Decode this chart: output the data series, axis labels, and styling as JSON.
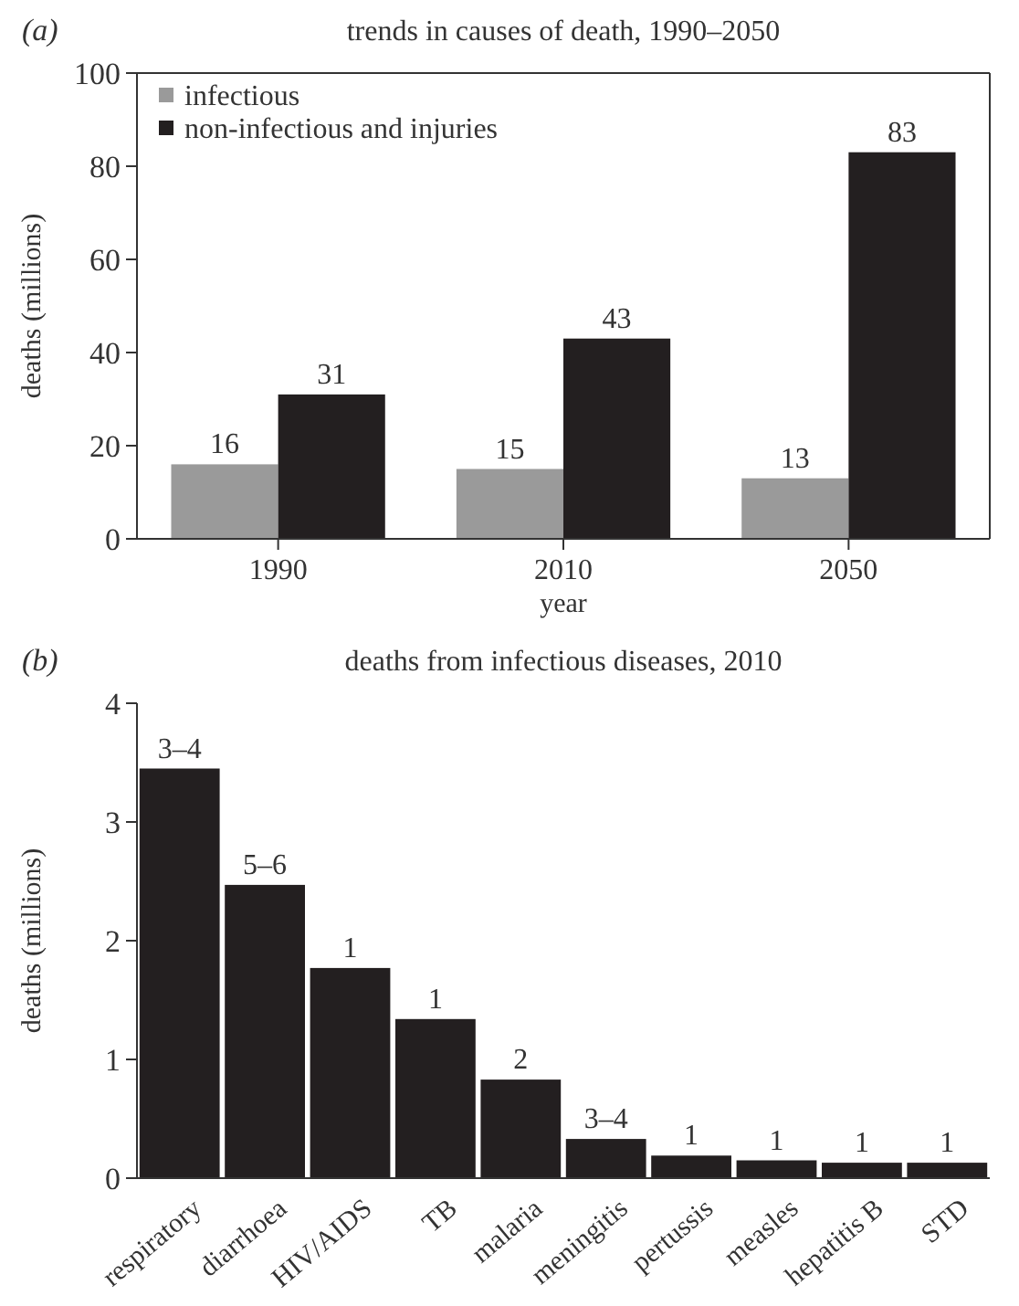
{
  "chart_data": [
    {
      "type": "bar",
      "title": "trends in causes of death, 1990–2050",
      "annotations": [
        "(a)"
      ],
      "xlabel": "year",
      "ylabel": "deaths (millions)",
      "categories": [
        "1990",
        "2010",
        "2050"
      ],
      "series": [
        {
          "name": "infectious",
          "color": "#9a9a9a",
          "values": [
            16,
            15,
            13
          ]
        },
        {
          "name": "non-infectious and injuries",
          "color": "#231f20",
          "values": [
            31,
            43,
            83
          ]
        }
      ],
      "ylim": [
        0,
        100
      ],
      "yticks": [
        0,
        20,
        40,
        60,
        80,
        100
      ],
      "data_labels": true,
      "legend": "top left",
      "grid": false
    },
    {
      "type": "bar",
      "title": "deaths from infectious diseases, 2010",
      "annotations": [
        "(b)",
        {
          "text": "3–4",
          "x": "respiratory",
          "y": 3.45
        },
        {
          "text": "5–6",
          "x": "diarrhoea",
          "y": 2.47
        },
        {
          "text": "1",
          "x": "HIV/AIDS",
          "y": 1.77
        },
        {
          "text": "1",
          "x": "TB",
          "y": 1.34
        },
        {
          "text": "2",
          "x": "malaria",
          "y": 0.83
        },
        {
          "text": "3–4",
          "x": "meningitis",
          "y": 0.33
        },
        {
          "text": "1",
          "x": "pertussis",
          "y": 0.19
        },
        {
          "text": "1",
          "x": "measles",
          "y": 0.15
        },
        {
          "text": "1",
          "x": "hepatitis B",
          "y": 0.13
        },
        {
          "text": "1",
          "x": "STD",
          "y": 0.13
        }
      ],
      "ylabel": "deaths (millions)",
      "categories": [
        "respiratory",
        "diarrhoea",
        "HIV/AIDS",
        "TB",
        "malaria",
        "meningitis",
        "pertussis",
        "measles",
        "hepatitis B",
        "STD"
      ],
      "values": [
        3.45,
        2.47,
        1.77,
        1.34,
        0.83,
        0.33,
        0.19,
        0.15,
        0.13,
        0.13
      ],
      "color": "#231f20",
      "ylim": [
        0,
        4
      ],
      "yticks": [
        0,
        1,
        2,
        3,
        4
      ],
      "grid": false
    }
  ]
}
